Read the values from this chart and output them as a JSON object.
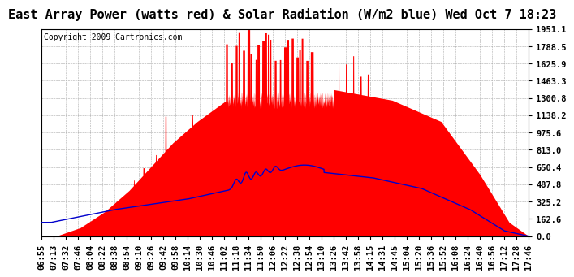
{
  "title": "East Array Power (watts red) & Solar Radiation (W/m2 blue) Wed Oct 7 18:23",
  "copyright": "Copyright 2009 Cartronics.com",
  "background_color": "#ffffff",
  "plot_bg_color": "#ffffff",
  "red_color": "#ff0000",
  "blue_color": "#0000cc",
  "grid_color": "#aaaaaa",
  "ymax": 1951.1,
  "ymin": 0.0,
  "yticks": [
    0.0,
    162.6,
    325.2,
    487.8,
    650.4,
    813.0,
    975.6,
    1138.2,
    1300.8,
    1463.3,
    1625.9,
    1788.5,
    1951.1
  ],
  "x_labels": [
    "06:55",
    "07:13",
    "07:32",
    "07:46",
    "08:04",
    "08:22",
    "08:38",
    "08:54",
    "09:10",
    "09:26",
    "09:42",
    "09:58",
    "10:14",
    "10:30",
    "10:46",
    "11:02",
    "11:18",
    "11:34",
    "11:50",
    "12:06",
    "12:22",
    "12:38",
    "12:54",
    "13:10",
    "13:26",
    "13:42",
    "13:58",
    "14:15",
    "14:31",
    "14:45",
    "15:04",
    "15:20",
    "15:36",
    "15:52",
    "16:08",
    "16:24",
    "16:40",
    "16:56",
    "17:12",
    "17:28",
    "17:46"
  ],
  "title_fontsize": 11,
  "copyright_fontsize": 7,
  "tick_fontsize": 7.5
}
